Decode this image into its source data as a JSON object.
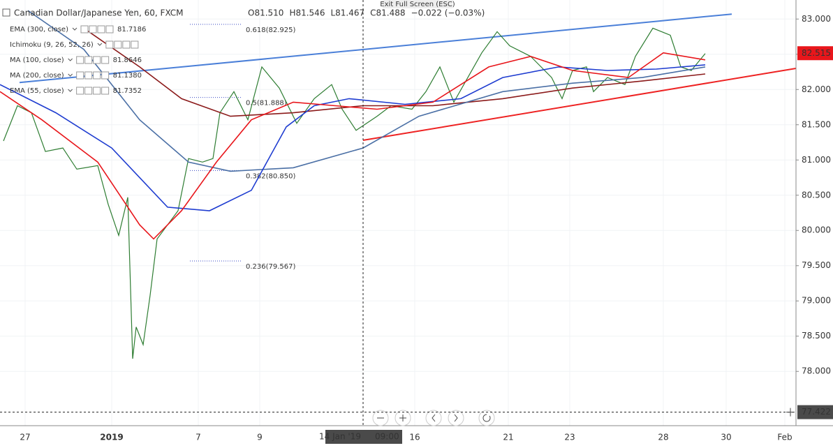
{
  "chart_data": {
    "type": "line",
    "title": "Canadian Dollar/Japanese Yen, 60, FXCM",
    "ohlc": [
      "O81.510",
      "H81.546",
      "L81.467",
      "C81.488",
      "−0.022 (−0.03%)"
    ],
    "indicators": [
      {
        "name": "EMA (300, close)",
        "value": "81.7186",
        "color": "#8b1a1a"
      },
      {
        "name": "Ichimoku (9, 26, 52, 26)",
        "color": "#555555"
      },
      {
        "name": "MA (100, close)",
        "value": "81.8646",
        "color": "#1e3cd0"
      },
      {
        "name": "MA (200, close)",
        "value": "81.1380",
        "color": "#4a6fa5"
      },
      {
        "name": "EMA (55, close)",
        "value": "81.7352",
        "color": "#e8161b"
      }
    ],
    "exit_fullscreen": "Exit Full Screen (ESC)",
    "xlim": [
      0,
      285
    ],
    "xticks": [
      {
        "value": 9,
        "label": "27"
      },
      {
        "value": 40,
        "label": "2019"
      },
      {
        "value": 71,
        "label": "7"
      },
      {
        "value": 93,
        "label": "9"
      },
      {
        "value": 148.5,
        "label": "16"
      },
      {
        "value": 182,
        "label": "21"
      },
      {
        "value": 204,
        "label": "23"
      },
      {
        "value": 237.5,
        "label": "28"
      },
      {
        "value": 260,
        "label": "30"
      },
      {
        "value": 281,
        "label": "Feb"
      }
    ],
    "ylim": [
      77.23,
      83.27
    ],
    "yticks": [
      {
        "value": 78,
        "label": "78.000"
      },
      {
        "value": 78.5,
        "label": "78.500"
      },
      {
        "value": 79,
        "label": "79.000"
      },
      {
        "value": 79.5,
        "label": "79.500"
      },
      {
        "value": 80,
        "label": "80.000"
      },
      {
        "value": 80.5,
        "label": "80.500"
      },
      {
        "value": 81,
        "label": "81.000"
      },
      {
        "value": 81.5,
        "label": "81.500"
      },
      {
        "value": 82,
        "label": "82.000"
      },
      {
        "value": 82.5,
        "label": "82.500"
      },
      {
        "value": 83,
        "label": "83.000"
      }
    ],
    "grid": true,
    "series": [
      {
        "color": "#2e7d32",
        "width": 1.2,
        "x": [
          1.25,
          6.25,
          11.25,
          16.25,
          22.5,
          27.5,
          35,
          38.75,
          42.5,
          45.75,
          47.5,
          48.75,
          51.25,
          53.75,
          56.25,
          60,
          63.75,
          67.5,
          72.5,
          76.25,
          78.75,
          83.75,
          88.75,
          93.75,
          100,
          106.25,
          112.5,
          118.75,
          122.5,
          127.5,
          135,
          140,
          147.5,
          152.5,
          157.5,
          162.5,
          167.5,
          172.5,
          178,
          182.5,
          190,
          197.5,
          201.25,
          205,
          210,
          212.5,
          217.5,
          223.75,
          227.5,
          233.75,
          240,
          243.75,
          247.5,
          252.5
        ],
        "values": [
          81.27,
          81.77,
          81.67,
          81.12,
          81.17,
          80.87,
          80.92,
          80.37,
          79.93,
          80.47,
          78.18,
          78.63,
          78.38,
          79.08,
          79.88,
          80.08,
          80.28,
          81.02,
          80.97,
          81.02,
          81.67,
          81.97,
          81.57,
          82.32,
          82.02,
          81.52,
          81.87,
          82.07,
          81.72,
          81.42,
          81.62,
          81.77,
          81.72,
          81.97,
          82.32,
          81.82,
          82.17,
          82.52,
          82.82,
          82.62,
          82.47,
          82.17,
          81.87,
          82.27,
          82.32,
          81.97,
          82.17,
          82.07,
          82.47,
          82.87,
          82.77,
          82.32,
          82.27,
          82.51
        ]
      },
      {
        "color": "#8b1a1a",
        "width": 1.6,
        "x": [
          30,
          50,
          65,
          82.5,
          105,
          130,
          155,
          180,
          205,
          230,
          252.5
        ],
        "values": [
          82.87,
          82.32,
          81.87,
          81.62,
          81.67,
          81.77,
          81.77,
          81.87,
          82.02,
          82.12,
          82.22
        ]
      },
      {
        "color": "#4a6fa5",
        "width": 1.6,
        "x": [
          10,
          30,
          50,
          67.5,
          82.5,
          105,
          130,
          150,
          180,
          205,
          230,
          252.5
        ],
        "values": [
          83.12,
          82.57,
          81.57,
          80.97,
          80.84,
          80.89,
          81.17,
          81.62,
          81.97,
          82.09,
          82.17,
          82.32
        ]
      },
      {
        "color": "#1e3cd0",
        "width": 1.6,
        "x": [
          0,
          20,
          40,
          60,
          75,
          90,
          102.5,
          112.5,
          125,
          145,
          165,
          180,
          200,
          217.5,
          235,
          252.5
        ],
        "values": [
          82.07,
          81.67,
          81.17,
          80.33,
          80.28,
          80.57,
          81.47,
          81.77,
          81.87,
          81.79,
          81.87,
          82.17,
          82.32,
          82.27,
          82.29,
          82.35
        ]
      },
      {
        "color": "#e8161b",
        "width": 1.6,
        "x": [
          0,
          15,
          35,
          50,
          55,
          65,
          77.5,
          90,
          105,
          120,
          135,
          155,
          175,
          190,
          205,
          225,
          237.5,
          252.5
        ],
        "values": [
          81.97,
          81.57,
          80.97,
          80.08,
          79.88,
          80.28,
          80.97,
          81.57,
          81.82,
          81.77,
          81.72,
          81.82,
          82.32,
          82.47,
          82.27,
          82.17,
          82.52,
          82.42
        ]
      }
    ],
    "trendlines": [
      {
        "color": "#4a7fd8",
        "x": [
          7,
          262
        ],
        "values": [
          82.1,
          83.07
        ]
      },
      {
        "color": "#ee2222",
        "x": [
          130,
          285
        ],
        "values": [
          81.28,
          82.3
        ]
      }
    ],
    "fib_levels": [
      {
        "label": "0.618(82.925)",
        "value": 82.925
      },
      {
        "label": "0.5(81.888)",
        "value": 81.888
      },
      {
        "label": "0.382(80.850)",
        "value": 80.85
      },
      {
        "label": "0.236(79.567)",
        "value": 79.567
      }
    ],
    "last_price": 82.515,
    "crosshair": {
      "x": {
        "value": 130,
        "label": "14 Jan '19"
      },
      "time": "09:00",
      "price": 77.422
    }
  }
}
